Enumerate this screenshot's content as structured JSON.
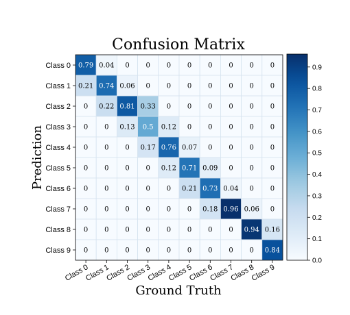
{
  "chart_data": {
    "type": "heatmap",
    "title": "Confusion Matrix",
    "xlabel": "Ground Truth",
    "ylabel": "Prediction",
    "x_categories": [
      "Class 0",
      "Class 1",
      "Class 2",
      "Class 3",
      "Class 4",
      "Class 5",
      "Class 6",
      "Class 7",
      "Class 8",
      "Class 9"
    ],
    "y_categories": [
      "Class 0",
      "Class 1",
      "Class 2",
      "Class 3",
      "Class 4",
      "Class 5",
      "Class 6",
      "Class 7",
      "Class 8",
      "Class 9"
    ],
    "values": [
      [
        0.79,
        0.04,
        0,
        0,
        0,
        0,
        0,
        0,
        0,
        0
      ],
      [
        0.21,
        0.74,
        0.06,
        0,
        0,
        0,
        0,
        0,
        0,
        0
      ],
      [
        0,
        0.22,
        0.81,
        0.33,
        0,
        0,
        0,
        0,
        0,
        0
      ],
      [
        0,
        0,
        0.13,
        0.5,
        0.12,
        0,
        0,
        0,
        0,
        0
      ],
      [
        0,
        0,
        0,
        0.17,
        0.76,
        0.07,
        0,
        0,
        0,
        0
      ],
      [
        0,
        0,
        0,
        0,
        0.12,
        0.71,
        0.09,
        0,
        0,
        0
      ],
      [
        0,
        0,
        0,
        0,
        0,
        0.21,
        0.73,
        0.04,
        0,
        0
      ],
      [
        0,
        0,
        0,
        0,
        0,
        0,
        0.18,
        0.96,
        0.06,
        0
      ],
      [
        0,
        0,
        0,
        0,
        0,
        0,
        0,
        0,
        0.94,
        0.16
      ],
      [
        0,
        0,
        0,
        0,
        0,
        0,
        0,
        0,
        0,
        0.84
      ]
    ],
    "colorbar": {
      "min": 0.0,
      "max": 0.96,
      "ticks": [
        "0.0",
        "0.1",
        "0.2",
        "0.3",
        "0.4",
        "0.5",
        "0.6",
        "0.7",
        "0.8",
        "0.9"
      ],
      "colormap": "Blues"
    },
    "grid": true
  },
  "colors": {
    "text_dark": "#000000",
    "text_light": "#ffffff",
    "grid_line": "#d6e3ef"
  }
}
